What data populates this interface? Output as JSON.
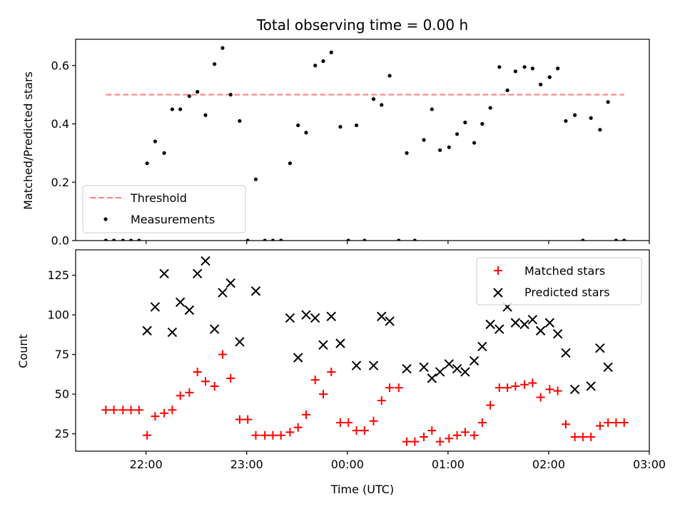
{
  "chart_data": [
    {
      "type": "scatter",
      "title": "Total observing time = 0.00 h",
      "ylabel": "Matched/Predicted stars",
      "ylim": [
        0,
        0.69
      ],
      "yticks": [
        0.0,
        0.2,
        0.4,
        0.6
      ],
      "xlim": [
        -2.7,
        3.0
      ],
      "threshold": {
        "name": "Threshold",
        "value": 0.5,
        "x": [
          -2.4,
          2.75
        ],
        "color": "#ff7f7f"
      },
      "legend": {
        "position": "lower-left",
        "entries": [
          "Threshold",
          "Measurements"
        ]
      },
      "series": [
        {
          "name": "Measurements",
          "color": "#000000",
          "x": [
            -2.4,
            -2.32,
            -2.23,
            -2.15,
            -2.07,
            -1.99,
            -1.91,
            -1.82,
            -1.74,
            -1.66,
            -1.57,
            -1.49,
            -1.41,
            -1.32,
            -1.24,
            -1.16,
            -1.07,
            -0.99,
            -0.91,
            -0.82,
            -0.74,
            -0.66,
            -0.57,
            -0.49,
            -0.41,
            -0.32,
            -0.24,
            -0.16,
            -0.07,
            0.01,
            0.09,
            0.17,
            0.26,
            0.34,
            0.42,
            0.51,
            0.59,
            0.67,
            0.76,
            0.84,
            0.92,
            1.01,
            1.09,
            1.17,
            1.26,
            1.34,
            1.42,
            1.51,
            1.59,
            1.67,
            1.76,
            1.84,
            1.92,
            2.01,
            2.09,
            2.17,
            2.26,
            2.34,
            2.42,
            2.51,
            2.59,
            2.67,
            2.75
          ],
          "y": [
            0.0,
            0.0,
            0.0,
            0.0,
            0.0,
            0.265,
            0.34,
            0.3,
            0.45,
            0.45,
            0.495,
            0.51,
            0.43,
            0.605,
            0.66,
            0.5,
            0.41,
            0.0,
            0.21,
            0.0,
            0.0,
            0.0,
            0.265,
            0.395,
            0.37,
            0.6,
            0.615,
            0.645,
            0.39,
            0.0,
            0.395,
            0.0,
            0.485,
            0.465,
            0.565,
            0.0,
            0.3,
            0.0,
            0.345,
            0.45,
            0.31,
            0.32,
            0.365,
            0.405,
            0.335,
            0.4,
            0.455,
            0.595,
            0.515,
            0.58,
            0.595,
            0.59,
            0.535,
            0.56,
            0.59,
            0.41,
            0.43,
            0.0,
            0.42,
            0.38,
            0.475,
            0.0,
            0.0
          ]
        }
      ]
    },
    {
      "type": "scatter",
      "xlabel": "Time (UTC)",
      "ylabel": "Count",
      "ylim": [
        14,
        141
      ],
      "yticks": [
        25,
        50,
        75,
        100,
        125
      ],
      "xlim": [
        -2.7,
        3.0
      ],
      "xticks": [
        -2,
        -1,
        0,
        1,
        2,
        3
      ],
      "xtick_labels": [
        "22:00",
        "23:00",
        "00:00",
        "01:00",
        "02:00",
        "03:00"
      ],
      "legend": {
        "position": "upper-right",
        "entries": [
          "Matched stars",
          "Predicted stars"
        ]
      },
      "series": [
        {
          "name": "Matched stars",
          "marker": "plus",
          "color": "#ff0000",
          "x": [
            -2.4,
            -2.32,
            -2.23,
            -2.15,
            -2.07,
            -1.99,
            -1.91,
            -1.82,
            -1.74,
            -1.66,
            -1.57,
            -1.49,
            -1.41,
            -1.32,
            -1.24,
            -1.16,
            -1.07,
            -0.99,
            -0.91,
            -0.82,
            -0.74,
            -0.66,
            -0.57,
            -0.49,
            -0.41,
            -0.32,
            -0.24,
            -0.16,
            -0.07,
            0.01,
            0.09,
            0.17,
            0.26,
            0.34,
            0.42,
            0.51,
            0.59,
            0.67,
            0.76,
            0.84,
            0.92,
            1.01,
            1.09,
            1.17,
            1.26,
            1.34,
            1.42,
            1.51,
            1.59,
            1.67,
            1.76,
            1.84,
            1.92,
            2.01,
            2.09,
            2.17,
            2.26,
            2.34,
            2.42,
            2.51,
            2.59,
            2.67,
            2.75
          ],
          "y": [
            40,
            40,
            40,
            40,
            40,
            24,
            36,
            38,
            40,
            49,
            51,
            64,
            58,
            55,
            75,
            60,
            34,
            34,
            24,
            24,
            24,
            24,
            26,
            29,
            37,
            59,
            50,
            64,
            32,
            32,
            27,
            27,
            33,
            46,
            54,
            54,
            20,
            20,
            23,
            27,
            20,
            22,
            24,
            26,
            24,
            32,
            43,
            54,
            54,
            55,
            56,
            57,
            48,
            53,
            52,
            31,
            23,
            23,
            23,
            30,
            32,
            32,
            32
          ]
        },
        {
          "name": "Predicted stars",
          "marker": "x",
          "color": "#000000",
          "x": [
            -1.99,
            -1.91,
            -1.82,
            -1.74,
            -1.66,
            -1.57,
            -1.49,
            -1.41,
            -1.32,
            -1.24,
            -1.16,
            -1.07,
            -0.91,
            -0.57,
            -0.49,
            -0.41,
            -0.32,
            -0.24,
            -0.16,
            -0.07,
            0.09,
            0.26,
            0.34,
            0.42,
            0.59,
            0.76,
            0.84,
            0.92,
            1.01,
            1.09,
            1.17,
            1.26,
            1.34,
            1.42,
            1.51,
            1.59,
            1.67,
            1.76,
            1.84,
            1.92,
            2.01,
            2.09,
            2.17,
            2.26,
            2.42,
            2.51,
            2.59
          ],
          "y": [
            90,
            105,
            126,
            89,
            108,
            103,
            126,
            134,
            91,
            114,
            120,
            83,
            115,
            98,
            73,
            100,
            98,
            81,
            99,
            82,
            68,
            68,
            99,
            96,
            66,
            67,
            60,
            64,
            69,
            66,
            64,
            71,
            80,
            94,
            91,
            105,
            95,
            94,
            97,
            90,
            95,
            88,
            76,
            53,
            55,
            79,
            67
          ]
        }
      ]
    }
  ]
}
